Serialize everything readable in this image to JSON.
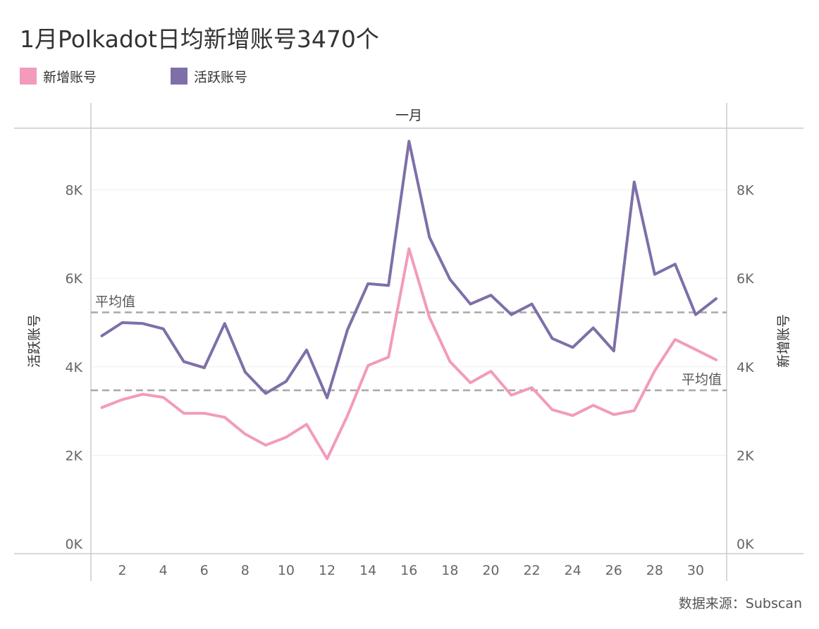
{
  "title": "1月Polkadot日均新增账号3470个",
  "legend": [
    {
      "label": "新增账号",
      "color": "#f29bbd"
    },
    {
      "label": "活跃账号",
      "color": "#7e6fa8"
    }
  ],
  "source": "数据来源：Subscan",
  "chart_data": {
    "type": "line",
    "header": "一月",
    "x": [
      1,
      2,
      3,
      4,
      5,
      6,
      7,
      8,
      9,
      10,
      11,
      12,
      13,
      14,
      15,
      16,
      17,
      18,
      19,
      20,
      21,
      22,
      23,
      24,
      25,
      26,
      27,
      28,
      29,
      30,
      31
    ],
    "x_ticks": [
      2,
      4,
      6,
      8,
      10,
      12,
      14,
      16,
      18,
      20,
      22,
      24,
      26,
      28,
      30
    ],
    "ylim": [
      0,
      9500
    ],
    "y_ticks": [
      {
        "value": 0,
        "label": "0K"
      },
      {
        "value": 2000,
        "label": "2K"
      },
      {
        "value": 4000,
        "label": "4K"
      },
      {
        "value": 6000,
        "label": "6K"
      },
      {
        "value": 8000,
        "label": "8K"
      }
    ],
    "ylabel_left": "活跃账号",
    "ylabel_right": "新增账号",
    "grid": true,
    "series": [
      {
        "name": "活跃账号",
        "axis": "left",
        "color": "#7e6fa8",
        "values": [
          4700,
          5000,
          4980,
          4860,
          4120,
          3980,
          4980,
          3880,
          3400,
          3670,
          4380,
          3300,
          4840,
          5880,
          5840,
          9100,
          6930,
          5980,
          5420,
          5620,
          5180,
          5420,
          4640,
          4440,
          4880,
          4360,
          8180,
          6090,
          6320,
          5180,
          5540
        ]
      },
      {
        "name": "新增账号",
        "axis": "right",
        "color": "#f29bbd",
        "values": [
          3080,
          3260,
          3380,
          3310,
          2950,
          2950,
          2860,
          2480,
          2230,
          2410,
          2700,
          1920,
          2900,
          4030,
          4220,
          6670,
          5120,
          4120,
          3640,
          3900,
          3360,
          3530,
          3030,
          2900,
          3130,
          2920,
          3010,
          3910,
          4620,
          4390,
          4160
        ]
      }
    ],
    "reference_lines": [
      {
        "label": "平均值",
        "value": 5230,
        "axis": "left",
        "label_side": "left"
      },
      {
        "label": "平均值",
        "value": 3470,
        "axis": "right",
        "label_side": "right"
      }
    ]
  }
}
